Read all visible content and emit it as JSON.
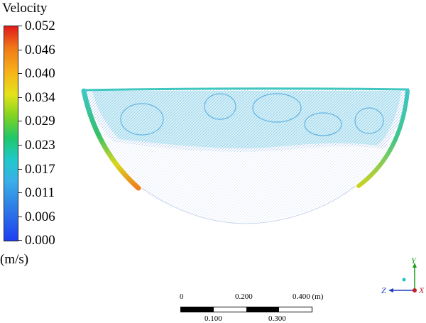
{
  "legend": {
    "title": "Velocity",
    "units": "(m/s)",
    "ticks": [
      "0.052",
      "0.046",
      "0.040",
      "0.034",
      "0.029",
      "0.023",
      "0.017",
      "0.011",
      "0.006",
      "0.000"
    ],
    "colors": {
      "max": "#e01b1b",
      "mid": "#20c9c9",
      "min": "#1e3ef0"
    }
  },
  "scale": {
    "top_labels": [
      "0",
      "0.200",
      "0.400 (m)"
    ],
    "bottom_labels": [
      "0.100",
      "0.300"
    ]
  },
  "triad": {
    "y": "Y",
    "z": "Z",
    "x": "X"
  }
}
